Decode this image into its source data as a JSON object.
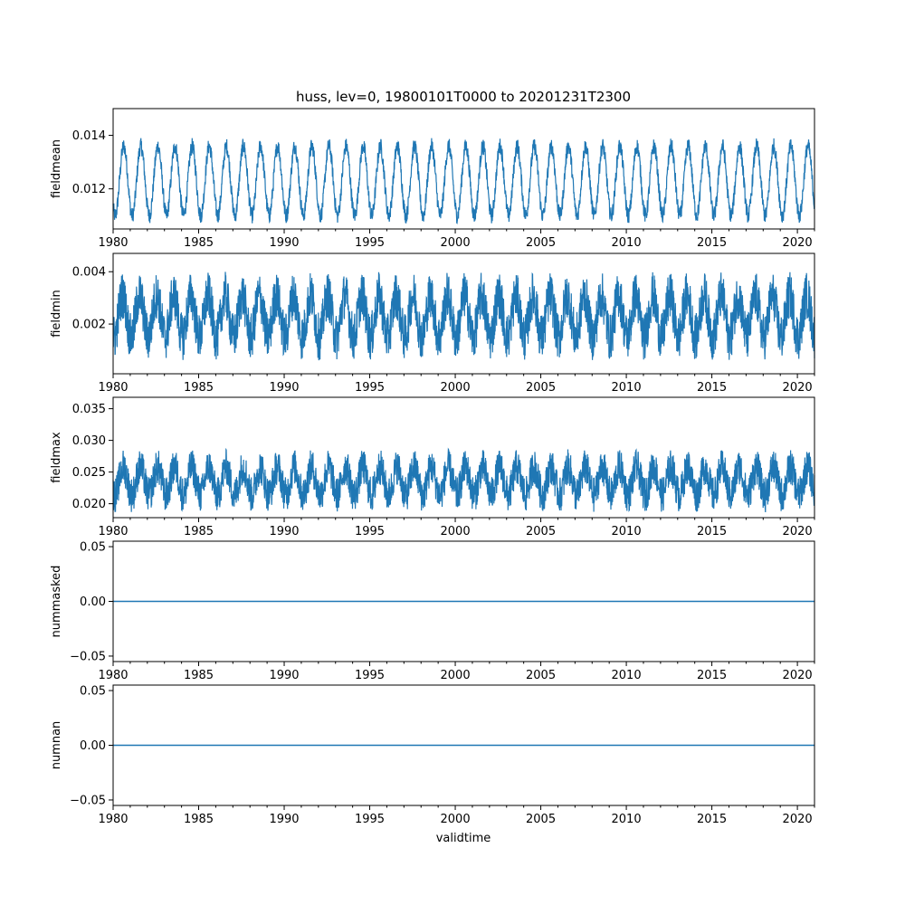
{
  "figure": {
    "title": "huss, lev=0, 19800101T0000 to 20201231T2300",
    "xlabel": "validtime"
  },
  "colors": {
    "series": "#1f77b4",
    "axis": "#000000",
    "background": "#ffffff"
  },
  "chart_data": [
    {
      "type": "line",
      "ylabel": "fieldmean",
      "xlim": [
        1980.0,
        2021.0
      ],
      "ylim": [
        0.0105,
        0.015
      ],
      "x_ticks": [
        1980,
        1985,
        1990,
        1995,
        2000,
        2005,
        2010,
        2015,
        2020
      ],
      "x_tick_labels": [
        "1980",
        "1985",
        "1990",
        "1995",
        "2000",
        "2005",
        "2010",
        "2015",
        "2020"
      ],
      "y_ticks": [
        0.012,
        0.014
      ],
      "y_tick_labels": [
        "0.012",
        "0.014"
      ],
      "series": [
        {
          "x_range": [
            1980.0,
            2021.0
          ],
          "annual_cycle": {
            "mean": 0.0123,
            "amplitude": 0.0013,
            "peak_fraction_of_year": 0.62,
            "noise": 0.0003
          }
        }
      ]
    },
    {
      "type": "line",
      "ylabel": "fieldmin",
      "xlim": [
        1980.0,
        2021.0
      ],
      "ylim": [
        0.0001,
        0.0047
      ],
      "x_ticks": [
        1980,
        1985,
        1990,
        1995,
        2000,
        2005,
        2010,
        2015,
        2020
      ],
      "x_tick_labels": [
        "1980",
        "1985",
        "1990",
        "1995",
        "2000",
        "2005",
        "2010",
        "2015",
        "2020"
      ],
      "y_ticks": [
        0.002,
        0.004
      ],
      "y_tick_labels": [
        "0.002",
        "0.004"
      ],
      "series": [
        {
          "x_range": [
            1980.0,
            2021.0
          ],
          "annual_cycle": {
            "mean": 0.0023,
            "amplitude": 0.0008,
            "peak_fraction_of_year": 0.55,
            "noise": 0.0009
          }
        }
      ]
    },
    {
      "type": "line",
      "ylabel": "fieldmax",
      "xlim": [
        1980.0,
        2021.0
      ],
      "ylim": [
        0.0178,
        0.0368
      ],
      "x_ticks": [
        1980,
        1985,
        1990,
        1995,
        2000,
        2005,
        2010,
        2015,
        2020
      ],
      "x_tick_labels": [
        "1980",
        "1985",
        "1990",
        "1995",
        "2000",
        "2005",
        "2010",
        "2015",
        "2020"
      ],
      "y_ticks": [
        0.02,
        0.025,
        0.03,
        0.035
      ],
      "y_tick_labels": [
        "0.020",
        "0.025",
        "0.030",
        "0.035"
      ],
      "series": [
        {
          "x_range": [
            1980.0,
            2021.0
          ],
          "annual_cycle": {
            "mean": 0.0236,
            "amplitude": 0.0022,
            "peak_fraction_of_year": 0.6,
            "noise": 0.0028
          }
        }
      ]
    },
    {
      "type": "line",
      "ylabel": "nummasked",
      "xlim": [
        1980.0,
        2021.0
      ],
      "ylim": [
        -0.055,
        0.055
      ],
      "x_ticks": [
        1980,
        1985,
        1990,
        1995,
        2000,
        2005,
        2010,
        2015,
        2020
      ],
      "x_tick_labels": [
        "1980",
        "1985",
        "1990",
        "1995",
        "2000",
        "2005",
        "2010",
        "2015",
        "2020"
      ],
      "y_ticks": [
        -0.05,
        0.0,
        0.05
      ],
      "y_tick_labels": [
        "−0.05",
        "0.00",
        "0.05"
      ],
      "series": [
        {
          "x": [
            1980.0,
            2021.0
          ],
          "y": [
            0.0,
            0.0
          ]
        }
      ]
    },
    {
      "type": "line",
      "ylabel": "numnan",
      "xlim": [
        1980.0,
        2021.0
      ],
      "ylim": [
        -0.055,
        0.055
      ],
      "x_ticks": [
        1980,
        1985,
        1990,
        1995,
        2000,
        2005,
        2010,
        2015,
        2020
      ],
      "x_tick_labels": [
        "1980",
        "1985",
        "1990",
        "1995",
        "2000",
        "2005",
        "2010",
        "2015",
        "2020"
      ],
      "y_ticks": [
        -0.05,
        0.0,
        0.05
      ],
      "y_tick_labels": [
        "−0.05",
        "0.00",
        "0.05"
      ],
      "series": [
        {
          "x": [
            1980.0,
            2021.0
          ],
          "y": [
            0.0,
            0.0
          ]
        }
      ]
    }
  ]
}
